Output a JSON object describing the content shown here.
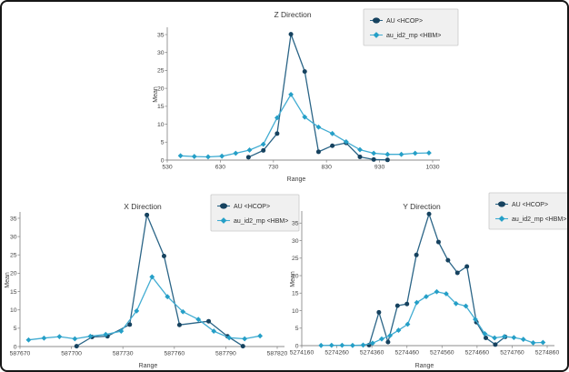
{
  "page": {
    "background": "#ffffff",
    "frame_border": "#161616"
  },
  "colors": {
    "series1_line": "#2b6587",
    "series1_marker": "#16425f",
    "series2_line": "#41acd2",
    "series2_marker": "#259fc7",
    "axis": "#8c8c8c",
    "legend_bg": "#f0f0f0",
    "legend_border": "#c9c9c9"
  },
  "chart_data": [
    {
      "id": "z",
      "type": "line",
      "title": "Z Direction",
      "xlabel": "Range",
      "ylabel": "Mean",
      "xlim": [
        530,
        1030
      ],
      "ylim": [
        0,
        35
      ],
      "grid": false,
      "legend_position": "top-right",
      "xticks": [
        "530",
        "630",
        "730",
        "830",
        "930",
        "1030"
      ],
      "yticks": [
        0,
        5,
        10,
        15,
        20,
        25,
        30,
        35
      ],
      "series": [
        {
          "name": "AU <HCOP>",
          "marker": "circle",
          "line_color": "#2b6587",
          "marker_color": "#16425f",
          "x": [
            683,
            711,
            737,
            763,
            789,
            815,
            841,
            867,
            893,
            919,
            945
          ],
          "y": [
            0.8,
            2.7,
            7.4,
            35.1,
            24.7,
            2.3,
            4.0,
            4.8,
            0.9,
            0.15,
            0.05
          ]
        },
        {
          "name": "au_id2_mp <HBM>",
          "marker": "diamond",
          "line_color": "#41acd2",
          "marker_color": "#259fc7",
          "x": [
            555,
            581,
            607,
            633,
            659,
            685,
            711,
            737,
            763,
            789,
            815,
            841,
            867,
            893,
            919,
            945,
            971,
            997,
            1023
          ],
          "y": [
            1.2,
            1.0,
            0.9,
            1.1,
            1.9,
            2.8,
            4.4,
            11.8,
            18.3,
            12.0,
            9.2,
            7.4,
            5.1,
            2.9,
            1.9,
            1.6,
            1.6,
            1.9,
            2.0
          ]
        }
      ]
    },
    {
      "id": "x",
      "type": "line",
      "title": "X Direction",
      "xlabel": "Range",
      "ylabel": "Mean",
      "xlim": [
        587670,
        587820
      ],
      "ylim": [
        0,
        35
      ],
      "grid": false,
      "legend_position": "top-right",
      "xticks": [
        "587670",
        "587700",
        "587730",
        "587760",
        "587790",
        "587820"
      ],
      "yticks": [
        0,
        5,
        10,
        15,
        20,
        25,
        30,
        35
      ],
      "series": [
        {
          "name": "AU <HCOP>",
          "marker": "circle",
          "line_color": "#2b6587",
          "marker_color": "#16425f",
          "x": [
            587703,
            587712,
            587721,
            587734,
            587744,
            587754,
            587763,
            587780,
            587791,
            587800
          ],
          "y": [
            0.1,
            2.6,
            2.8,
            6.0,
            35.9,
            24.7,
            5.9,
            6.9,
            2.8,
            0.1
          ]
        },
        {
          "name": "au_id2_mp <HBM>",
          "marker": "diamond",
          "line_color": "#41acd2",
          "marker_color": "#259fc7",
          "x": [
            587675,
            587684,
            587693,
            587702,
            587711,
            587720,
            587729,
            587738,
            587747,
            587756,
            587765,
            587774,
            587783,
            587792,
            587801,
            587810
          ],
          "y": [
            1.8,
            2.3,
            2.7,
            2.1,
            2.8,
            3.3,
            4.2,
            9.7,
            19.0,
            13.6,
            9.5,
            7.4,
            4.2,
            2.4,
            2.1,
            2.9
          ]
        }
      ]
    },
    {
      "id": "y",
      "type": "line",
      "title": "Y Direction",
      "xlabel": "Range",
      "ylabel": "Mean",
      "xlim": [
        5274160,
        5274860
      ],
      "ylim": [
        0,
        35
      ],
      "grid": false,
      "legend_position": "top-right",
      "xticks": [
        "5274160",
        "5274260",
        "5274360",
        "5274460",
        "5274560",
        "5274660",
        "5274760",
        "5274860"
      ],
      "yticks": [
        0,
        5,
        10,
        15,
        20,
        25,
        30,
        35
      ],
      "series": [
        {
          "name": "AU <HCOP>",
          "marker": "circle",
          "line_color": "#2b6587",
          "marker_color": "#16425f",
          "x": [
            5274352,
            5274380,
            5274406,
            5274433,
            5274460,
            5274487,
            5274523,
            5274550,
            5274577,
            5274604,
            5274631,
            5274658,
            5274685,
            5274712,
            5274740
          ],
          "y": [
            0.15,
            9.5,
            1.0,
            11.4,
            11.9,
            25.9,
            37.6,
            29.6,
            24.4,
            20.8,
            22.6,
            6.7,
            2.2,
            0.3,
            2.5
          ]
        },
        {
          "name": "au_id2_mp <HBM>",
          "marker": "diamond",
          "line_color": "#41acd2",
          "marker_color": "#259fc7",
          "x": [
            5274215,
            5274245,
            5274275,
            5274305,
            5274335,
            5274362,
            5274388,
            5274412,
            5274436,
            5274462,
            5274488,
            5274515,
            5274545,
            5274572,
            5274600,
            5274628,
            5274655,
            5274682,
            5274710,
            5274738,
            5274765,
            5274792,
            5274820,
            5274848
          ],
          "y": [
            0.05,
            0.1,
            0.1,
            0.05,
            0.15,
            0.7,
            1.9,
            2.9,
            4.4,
            6.1,
            12.3,
            14.0,
            15.4,
            14.8,
            12.0,
            11.3,
            7.5,
            3.4,
            2.2,
            2.6,
            2.3,
            1.8,
            0.8,
            0.9
          ]
        }
      ]
    }
  ]
}
